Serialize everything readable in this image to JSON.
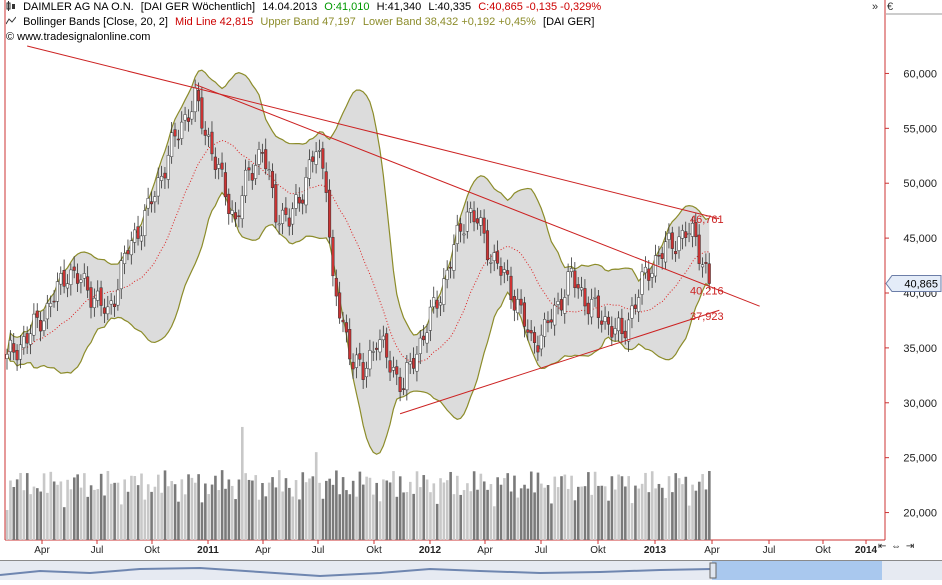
{
  "header": {
    "instrument": "DAIMLER AG NA O.N.",
    "exchange_period": "[DAI GER  Wöchentlich]",
    "date": "14.04.2013",
    "open": "O:41,010",
    "high": "H:41,340",
    "low": "L:40,335",
    "close_change": "C:40,865 -0,135 -0,329%",
    "indicator_name": "Bollinger Bands [Close, 20, 2]",
    "mid_line": "Mid Line 42,815",
    "upper_band": "Upper Band 47,197",
    "lower_band": "Lower Band 38,432 +0,192 +0,45%",
    "indicator_ref": "[DAI GER]",
    "copyright": "© www.tradesignalonline.com",
    "scroll_right": "»",
    "currency": "€"
  },
  "colors": {
    "candle_up": "#ffffff",
    "candle_down": "#cc3333",
    "band": "#8c8c2a",
    "band_fill": "#dcdcdc",
    "mid_line": "#dd2222",
    "trendline": "#cc2222",
    "volume_up": "#c8c8c8",
    "volume_down": "#7a7a7a",
    "last_price_box": "#e4ecf8",
    "midline_header": "#cc0000",
    "upper_header": "#8c8c2a",
    "lower_header": "#8c8c2a",
    "change_header": "#009900",
    "ohlc_header": "#009900",
    "close_header": "#cc0000"
  },
  "navigation": {
    "label": "⇤ ⇔ ⇥"
  },
  "chart_data": {
    "type": "candlestick",
    "title": "DAIMLER AG NA O.N.",
    "xlabel": "",
    "ylabel": "",
    "y_unit": "€",
    "y_ticks": [
      "60,000",
      "55,000",
      "50,000",
      "45,000",
      "40,000",
      "35,000",
      "30,000",
      "25,000",
      "20,000"
    ],
    "x_ticks": [
      "Apr",
      "Jul",
      "Okt",
      "2011",
      "Apr",
      "Jul",
      "Okt",
      "2012",
      "Apr",
      "Jul",
      "Okt",
      "2013",
      "Apr",
      "Jul",
      "Okt",
      "2014"
    ],
    "x_range": [
      "2010-02",
      "2014-01"
    ],
    "y_range": [
      17500,
      62500
    ],
    "last_price_label": "40,865",
    "annotations": [
      "46,761",
      "40,216",
      "37,923"
    ],
    "anchors": [
      {
        "week": 0,
        "close": 34000
      },
      {
        "week": 6,
        "close": 36000
      },
      {
        "week": 12,
        "close": 38500
      },
      {
        "week": 18,
        "close": 42000
      },
      {
        "week": 24,
        "close": 40500
      },
      {
        "week": 30,
        "close": 38000
      },
      {
        "week": 36,
        "close": 44000
      },
      {
        "week": 42,
        "close": 47500
      },
      {
        "week": 48,
        "close": 52500
      },
      {
        "week": 52,
        "close": 55500
      },
      {
        "week": 56,
        "close": 57500
      },
      {
        "week": 60,
        "close": 54000
      },
      {
        "week": 64,
        "close": 50000
      },
      {
        "week": 68,
        "close": 46500
      },
      {
        "week": 72,
        "close": 51000
      },
      {
        "week": 76,
        "close": 53000
      },
      {
        "week": 80,
        "close": 47500
      },
      {
        "week": 84,
        "close": 46500
      },
      {
        "week": 88,
        "close": 49500
      },
      {
        "week": 92,
        "close": 53000
      },
      {
        "week": 95,
        "close": 50500
      },
      {
        "week": 97,
        "close": 40500
      },
      {
        "week": 100,
        "close": 37000
      },
      {
        "week": 103,
        "close": 34000
      },
      {
        "week": 106,
        "close": 32500
      },
      {
        "week": 110,
        "close": 36000
      },
      {
        "week": 114,
        "close": 33500
      },
      {
        "week": 118,
        "close": 31500
      },
      {
        "week": 121,
        "close": 34000
      },
      {
        "week": 125,
        "close": 37000
      },
      {
        "week": 129,
        "close": 40000
      },
      {
        "week": 133,
        "close": 44000
      },
      {
        "week": 137,
        "close": 47500
      },
      {
        "week": 140,
        "close": 46500
      },
      {
        "week": 144,
        "close": 43500
      },
      {
        "week": 148,
        "close": 41500
      },
      {
        "week": 152,
        "close": 39000
      },
      {
        "week": 156,
        "close": 35500
      },
      {
        "week": 160,
        "close": 36500
      },
      {
        "week": 164,
        "close": 39000
      },
      {
        "week": 168,
        "close": 41500
      },
      {
        "week": 172,
        "close": 39500
      },
      {
        "week": 176,
        "close": 38000
      },
      {
        "week": 180,
        "close": 37000
      },
      {
        "week": 183,
        "close": 36000
      },
      {
        "week": 186,
        "close": 38500
      },
      {
        "week": 190,
        "close": 41500
      },
      {
        "week": 194,
        "close": 43500
      },
      {
        "week": 198,
        "close": 44500
      },
      {
        "week": 202,
        "close": 45500
      },
      {
        "week": 205,
        "close": 45000
      },
      {
        "week": 207,
        "close": 43000
      },
      {
        "week": 209,
        "close": 40865
      }
    ],
    "trendlines": [
      {
        "name": "upper-resistance",
        "from": {
          "week": 6,
          "value": 62500
        },
        "to": {
          "week": 212,
          "value": 46761
        }
      },
      {
        "name": "falling-line",
        "from": {
          "week": 56,
          "value": 59000
        },
        "to": {
          "week": 224,
          "value": 38800
        }
      },
      {
        "name": "rising-support",
        "from": {
          "week": 117,
          "value": 29000
        },
        "to": {
          "week": 212,
          "value": 38432
        }
      }
    ]
  }
}
